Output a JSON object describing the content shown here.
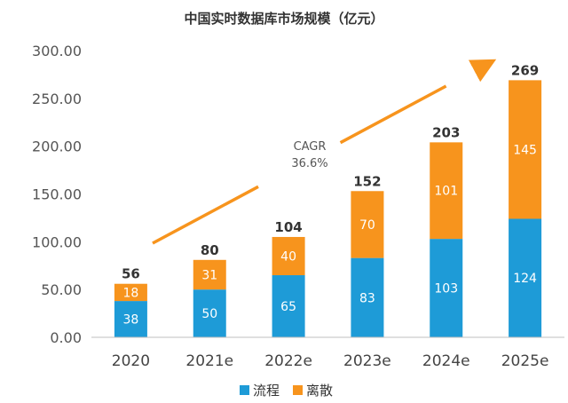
{
  "chart_data": {
    "type": "bar",
    "stacked": true,
    "title": "中国实时数据库市场规模（亿元）",
    "categories": [
      "2020",
      "2021e",
      "2022e",
      "2023e",
      "2024e",
      "2025e"
    ],
    "series": [
      {
        "name": "流程",
        "values": [
          38,
          50,
          65,
          83,
          103,
          124
        ]
      },
      {
        "name": "离散",
        "values": [
          18,
          31,
          40,
          70,
          101,
          145
        ]
      }
    ],
    "totals": [
      56,
      80,
      104,
      152,
      203,
      269
    ],
    "ylim": [
      0,
      300
    ],
    "yticks": [
      "0.00",
      "50.00",
      "100.00",
      "150.00",
      "200.00",
      "250.00",
      "300.00"
    ],
    "annotation": {
      "line1": "CAGR",
      "line2": "36.6%"
    },
    "colors": {
      "流程": "#1E9BD7",
      "离散": "#F7941D",
      "arrow": "#F7941D",
      "axis": "#BFBFBF"
    },
    "grid": false,
    "legend_position": "bottom"
  }
}
